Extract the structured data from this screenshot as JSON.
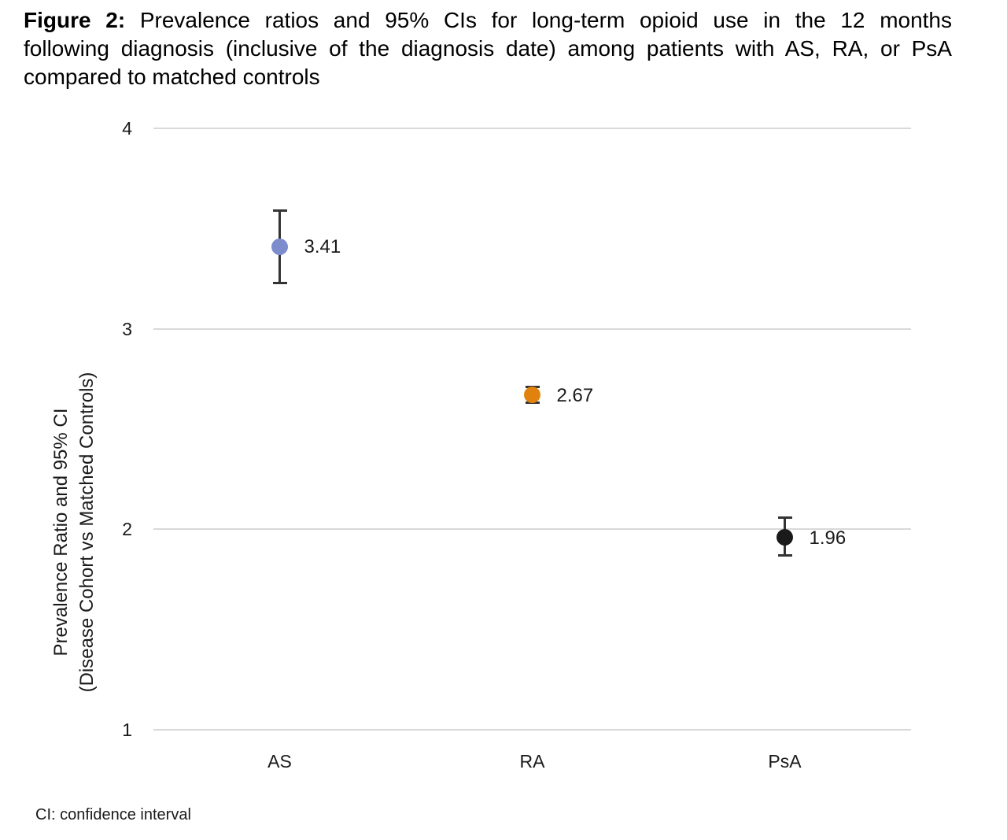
{
  "title": {
    "prefix": "Figure 2:",
    "line1": "Prevalence ratios and 95% CIs for long-term opioid use in the 12 months",
    "line2": "following diagnosis (inclusive of the diagnosis date) among patients with AS, RA, or PsA",
    "line3": "compared to matched controls"
  },
  "footnote": "CI: confidence interval",
  "chart_data": {
    "type": "scatter",
    "title": "",
    "categories": [
      "AS",
      "RA",
      "PsA"
    ],
    "series": [
      {
        "name": "Prevalence ratio (95% CI)",
        "values": [
          3.41,
          2.67,
          1.96
        ],
        "ci_low": [
          3.23,
          2.63,
          1.87
        ],
        "ci_high": [
          3.59,
          2.71,
          2.06
        ],
        "labels": [
          "3.41",
          "2.67",
          "1.96"
        ],
        "colors": [
          "#7d8ccd",
          "#e2820e",
          "#1a1a1a"
        ]
      }
    ],
    "xlabel": "",
    "ylabel_line1": "Prevalence Ratio and 95% CI",
    "ylabel_line2": "(Disease Cohort vs Matched Controls)",
    "ylim": [
      1,
      4
    ],
    "yticks": [
      4,
      3,
      2,
      1
    ],
    "grid": true,
    "legend": false,
    "error_bars": "95% CI",
    "colors": {
      "gridline": "#d9d9d9",
      "whisker": "#333333",
      "as_marker": "#7d8ccd",
      "ra_marker": "#e2820e",
      "psa_marker": "#1a1a1a"
    }
  }
}
